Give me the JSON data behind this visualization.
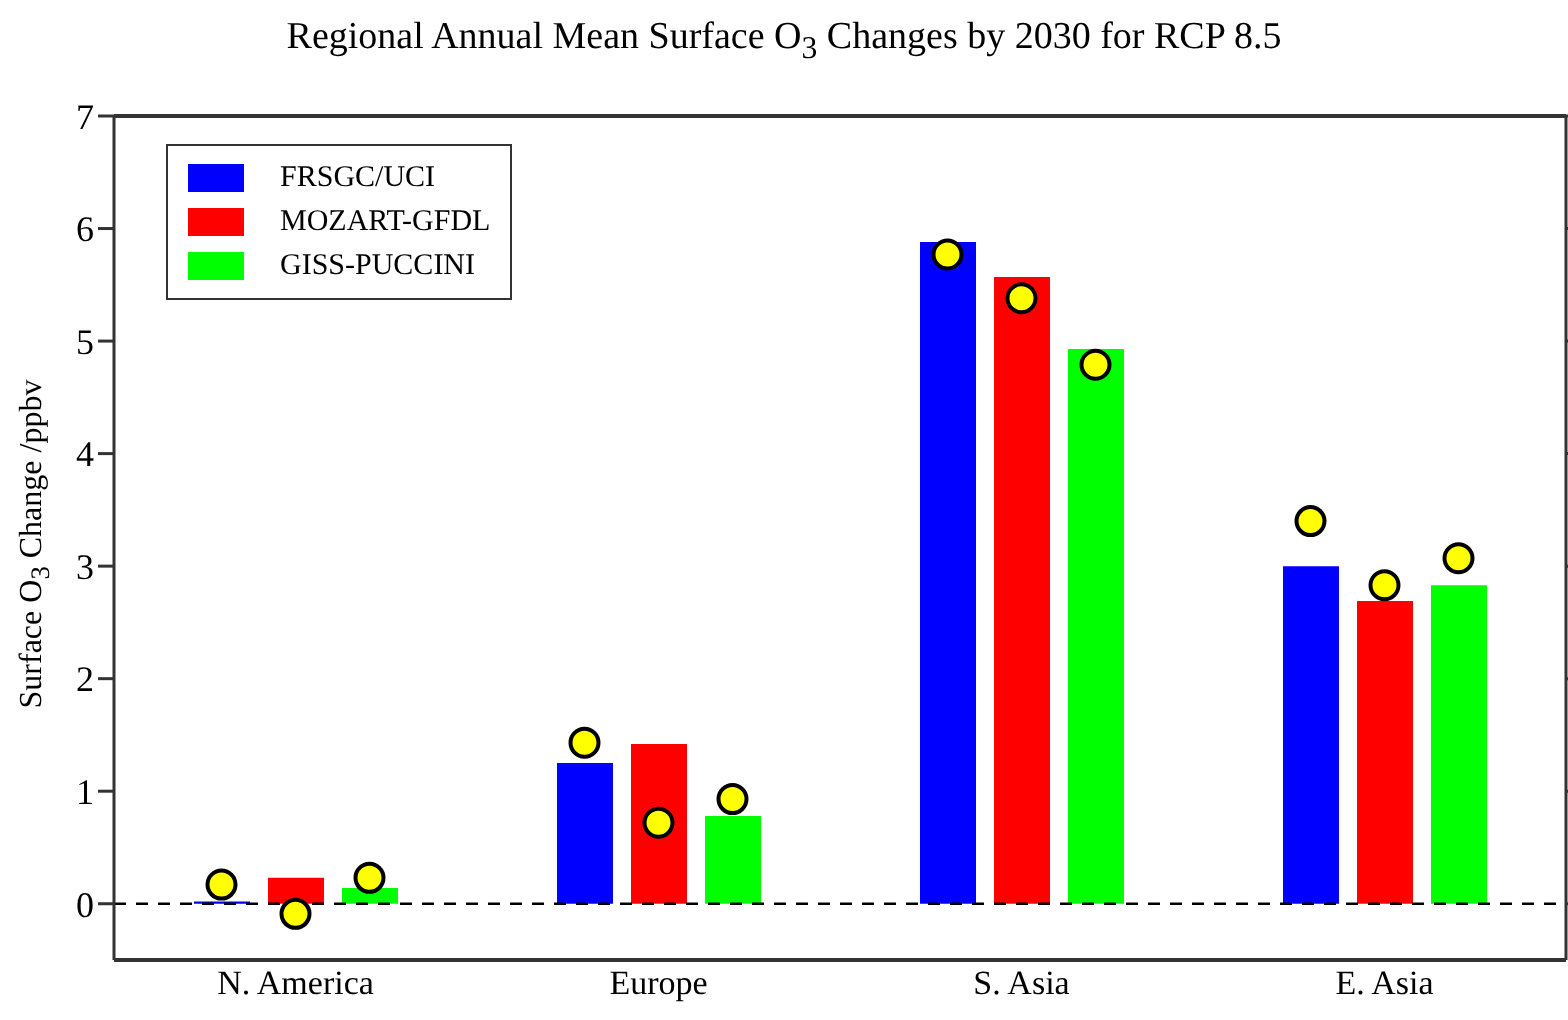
{
  "chart_data": {
    "type": "bar",
    "title": "Regional Annual Mean Surface O$_{3}$ Changes by 2030 for RCP 8.5",
    "ylabel": "Surface O$_{3}$ Change  /ppbv",
    "categories": [
      "N. America",
      "Europe",
      "S. Asia",
      "E. Asia"
    ],
    "series": [
      {
        "name": "FRSGC/UCI",
        "color": "#0000ff",
        "values": [
          0.02,
          1.25,
          5.88,
          3.0
        ]
      },
      {
        "name": "MOZART-GFDL",
        "color": "#ff0000",
        "values": [
          0.23,
          1.42,
          5.57,
          2.69
        ]
      },
      {
        "name": "GISS-PUCCINI",
        "color": "#00ff00",
        "values": [
          0.14,
          0.78,
          4.93,
          2.83
        ]
      },
      {
        "type": "scatter",
        "marker": "circle",
        "color": "#ffff00",
        "x": [
          "N. America",
          "Europe",
          "S. Asia",
          "E. Asia"
        ],
        "values": [
          0.17,
          1.43,
          5.77,
          3.4
        ]
      },
      {
        "type": "scatter",
        "marker": "circle",
        "color": "#ffff00",
        "x": [
          "N. America",
          "Europe",
          "S. Asia",
          "E. Asia"
        ],
        "values": [
          -0.09,
          0.72,
          5.38,
          2.83
        ]
      },
      {
        "type": "scatter",
        "marker": "circle",
        "color": "#ffff00",
        "x": [
          "N. America",
          "Europe",
          "S. Asia",
          "E. Asia"
        ],
        "values": [
          0.23,
          0.93,
          4.79,
          3.07
        ]
      }
    ],
    "ylim": [
      -0.5,
      7
    ],
    "yticks": [
      0,
      1,
      2,
      3,
      4,
      5,
      6,
      7
    ],
    "ref_lines": [
      {
        "axis": "y",
        "value": 0,
        "line_style": "dashed",
        "color": "#000000"
      }
    ],
    "grid": false,
    "legend": "top left"
  }
}
